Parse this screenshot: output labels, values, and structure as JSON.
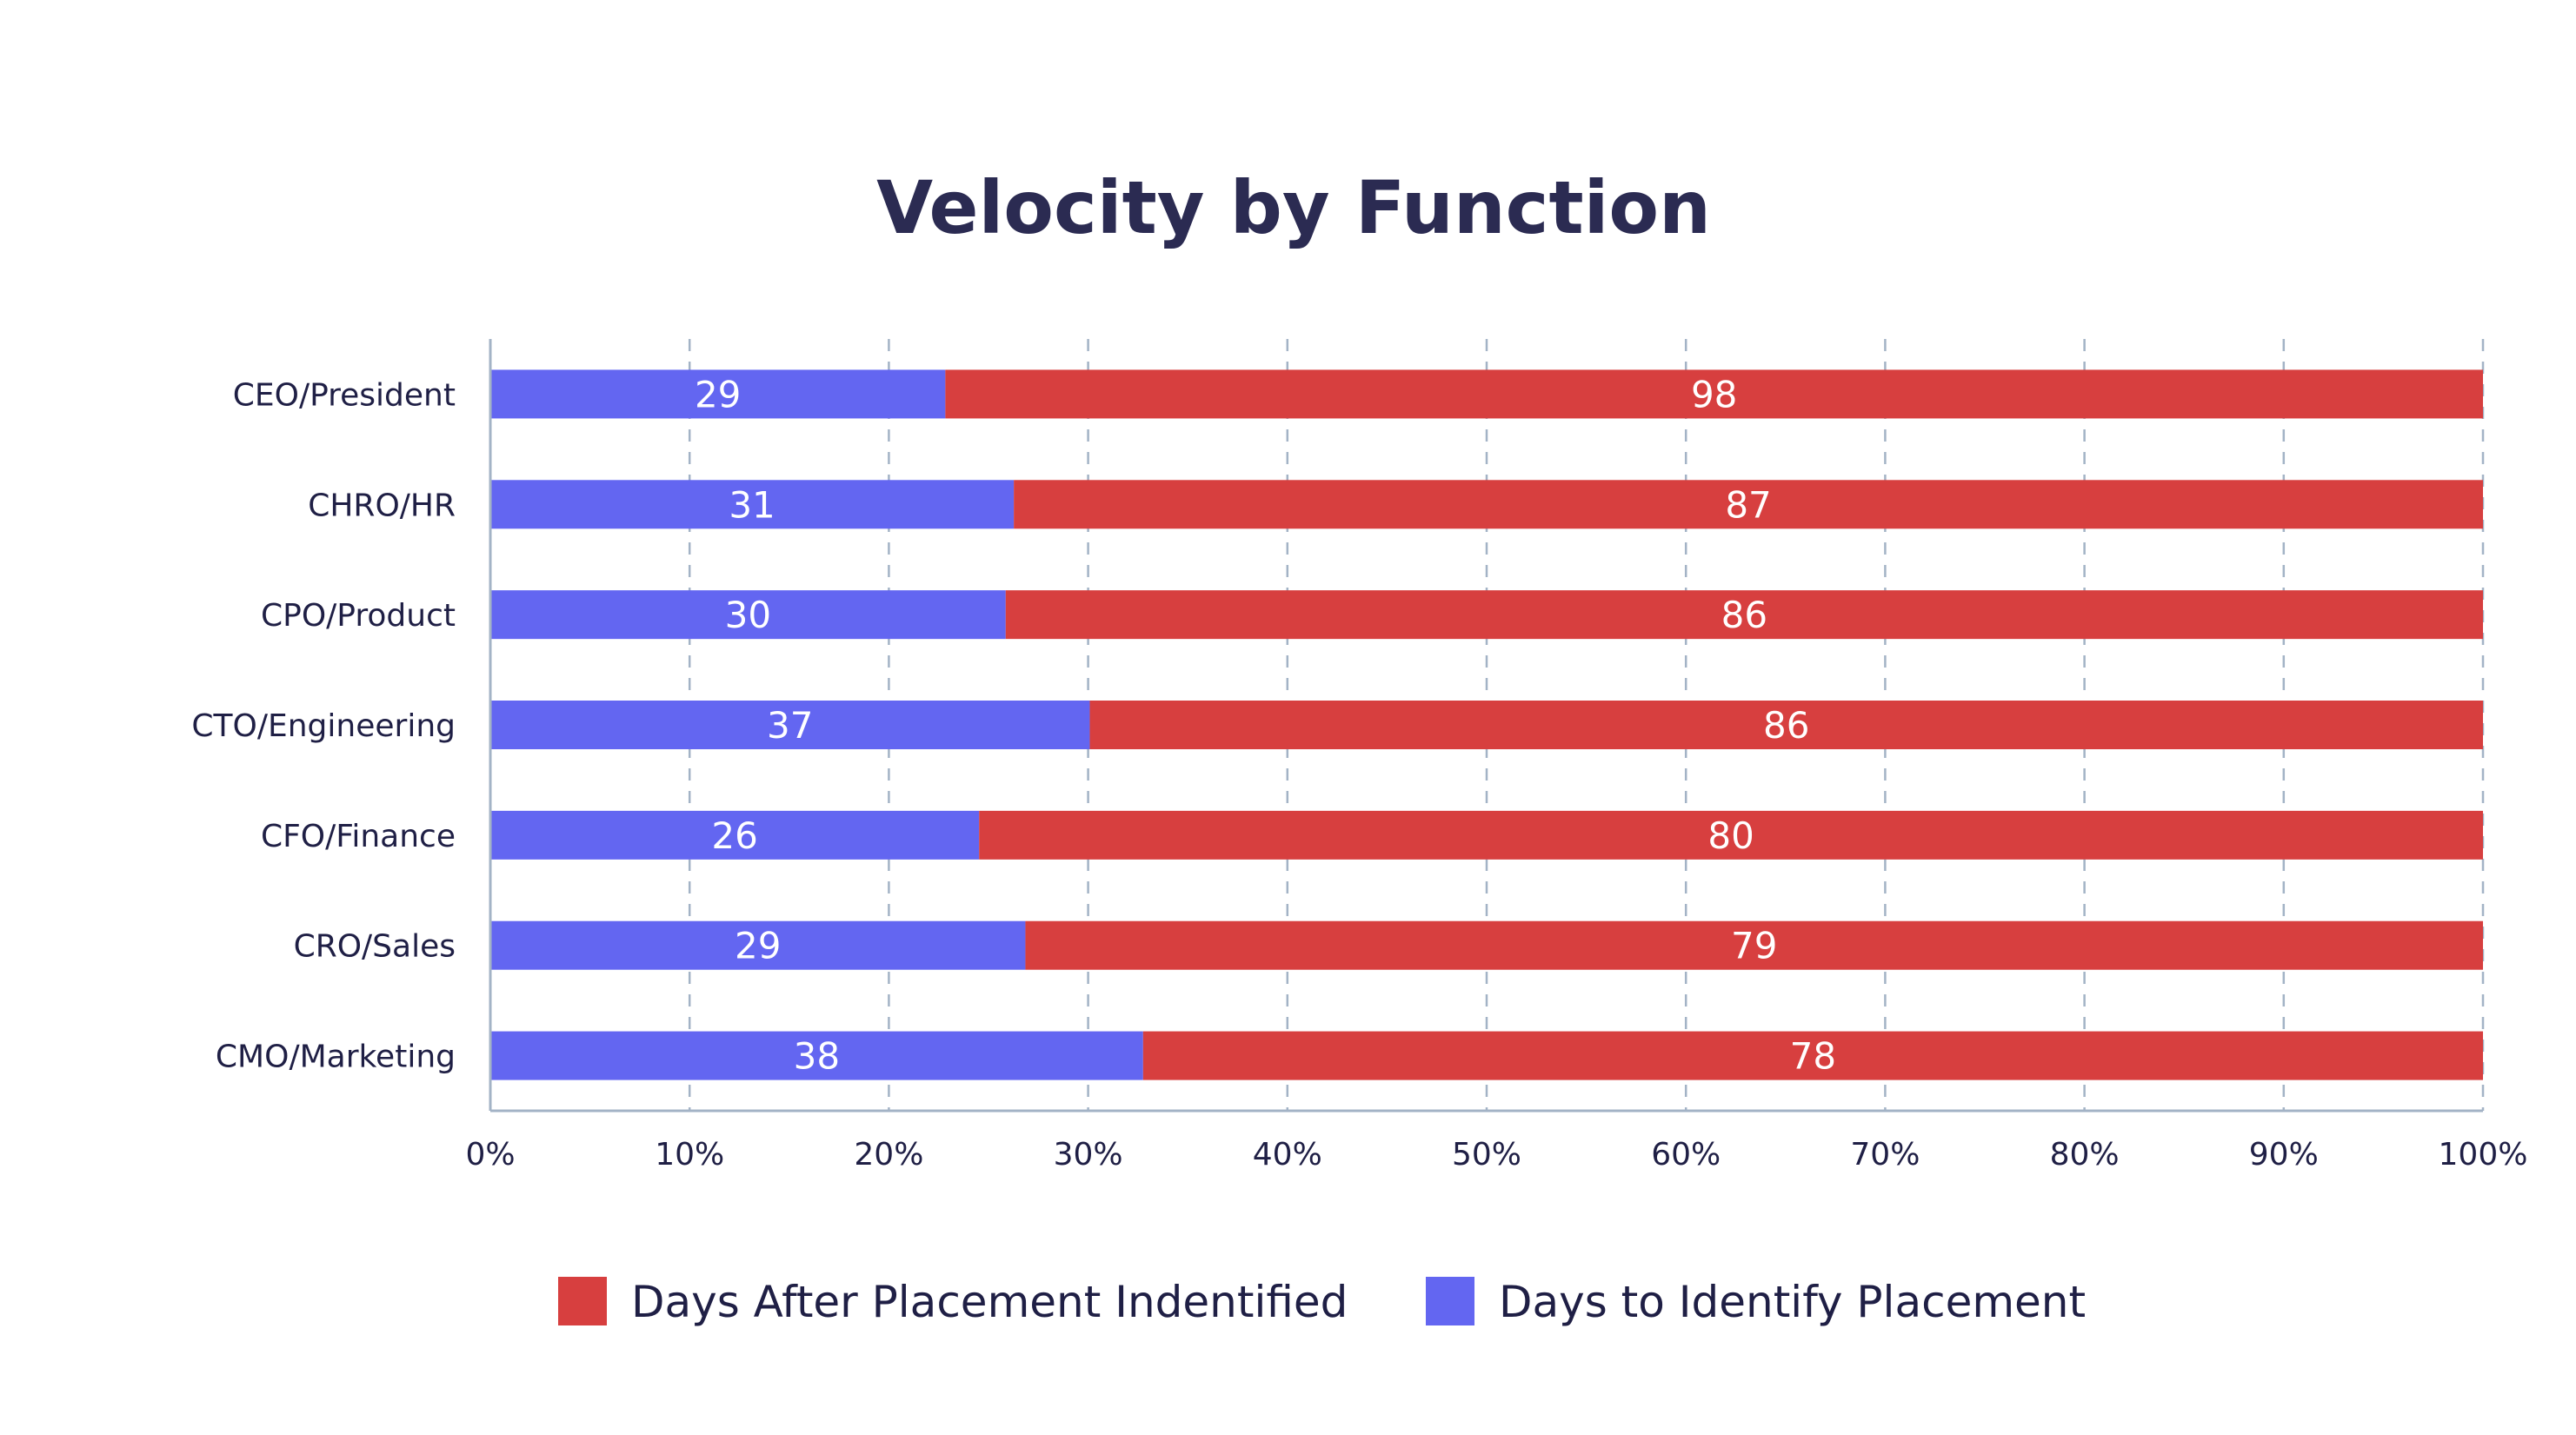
{
  "chart_data": {
    "type": "bar",
    "orientation": "horizontal",
    "stacked": "percent",
    "title": "Velocity by Function",
    "xlabel": "",
    "ylabel": "",
    "xlim": [
      0,
      100
    ],
    "x_tick_labels": [
      "0%",
      "10%",
      "20%",
      "30%",
      "40%",
      "50%",
      "60%",
      "70%",
      "80%",
      "90%",
      "100%"
    ],
    "grid": "vertical-dashed",
    "legend_position": "bottom",
    "categories": [
      "CEO/President",
      "CHRO/HR",
      "CPO/Product",
      "CTO/Engineering",
      "CFO/Finance",
      "CRO/Sales",
      "CMO/Marketing"
    ],
    "series": [
      {
        "name": "Days to Identify Placement",
        "color": "#6366f1",
        "values": [
          29,
          31,
          30,
          37,
          26,
          29,
          38
        ]
      },
      {
        "name": "Days After Placement Indentified",
        "color": "#d73f3f",
        "values": [
          98,
          87,
          86,
          86,
          80,
          79,
          78
        ]
      }
    ],
    "legend_order": [
      1,
      0
    ]
  }
}
